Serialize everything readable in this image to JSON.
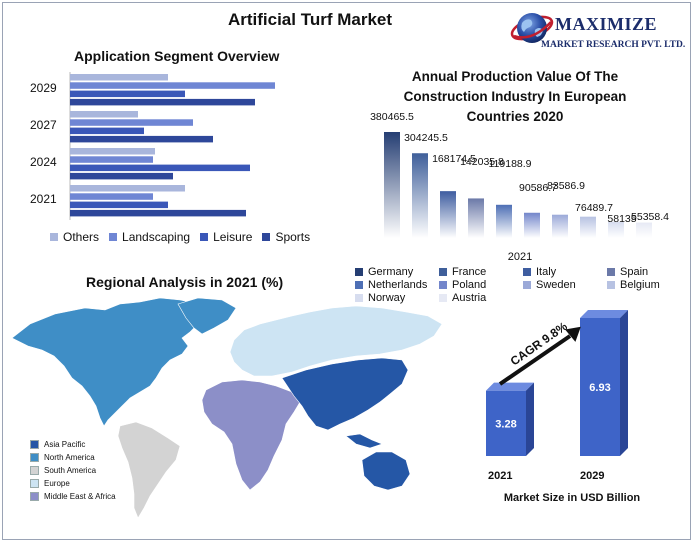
{
  "title": "Artificial Turf Market",
  "logo": {
    "name": "MAXIMIZE",
    "subtitle": "MARKET RESEARCH PVT. LTD."
  },
  "colors": {
    "others": "#a9b6dc",
    "landscaping": "#6f86d4",
    "leisure": "#3a57b8",
    "sports": "#2e479a"
  },
  "chart_data": [
    {
      "type": "bar",
      "orientation": "horizontal",
      "title": "Application Segment Overview",
      "categories": [
        "2029",
        "2027",
        "2024",
        "2021"
      ],
      "series": [
        {
          "name": "Others",
          "values": [
            98,
            68,
            85,
            115
          ]
        },
        {
          "name": "Landscaping",
          "values": [
            205,
            123,
            83,
            83
          ]
        },
        {
          "name": "Leisure",
          "values": [
            115,
            74,
            180,
            98
          ]
        },
        {
          "name": "Sports",
          "values": [
            185,
            143,
            103,
            176
          ]
        }
      ],
      "legend_position": "bottom"
    },
    {
      "type": "bar",
      "title": "Annual Production Value Of The Construction Industry In European Countries 2020",
      "xlabel": "2021",
      "series": [
        {
          "name": "Germany",
          "values": [
            380465.5
          ]
        },
        {
          "name": "France",
          "values": [
            304245.5
          ]
        },
        {
          "name": "Italy",
          "values": [
            168174.5
          ]
        },
        {
          "name": "Spain",
          "values": [
            142035.8
          ]
        },
        {
          "name": "Netherlands",
          "values": [
            119188.9
          ]
        },
        {
          "name": "Poland",
          "values": [
            90586.7
          ]
        },
        {
          "name": "Sweden",
          "values": [
            83586.9
          ]
        },
        {
          "name": "Belgium",
          "values": [
            76489.7
          ]
        },
        {
          "name": "Norway",
          "values": [
            58135
          ]
        },
        {
          "name": "Austria",
          "values": [
            55358.4
          ]
        }
      ],
      "data_labels": [
        "380465.5",
        "304245.5",
        "168174.5",
        "142035.8",
        "119188.9",
        "90586.7",
        "83586.9",
        "76489.7",
        "58135",
        "55358.4"
      ],
      "legend_position": "bottom"
    },
    {
      "type": "bar",
      "title": "Market Size in USD Billion",
      "categories": [
        "2021",
        "2029"
      ],
      "values": [
        3.28,
        6.93
      ],
      "annotation": "CAGR 9.8%"
    }
  ],
  "regional": {
    "title": "Regional Analysis in 2021 (%)",
    "legend": [
      {
        "name": "Asia Pacific",
        "color": "#2557a6"
      },
      {
        "name": "North America",
        "color": "#3f8ec6"
      },
      {
        "name": "South America",
        "color": "#d3d3d3"
      },
      {
        "name": "Europe",
        "color": "#cde4f3"
      },
      {
        "name": "Middle East & Africa",
        "color": "#8c8fc8"
      }
    ]
  },
  "euro_colors": [
    "#253e73",
    "#3f5f9a",
    "#3e5da0",
    "#6b79a8",
    "#4e6fb5",
    "#7386cb",
    "#9ba9d8",
    "#b7c2e2",
    "#d7ddef",
    "#e6e9f4"
  ]
}
